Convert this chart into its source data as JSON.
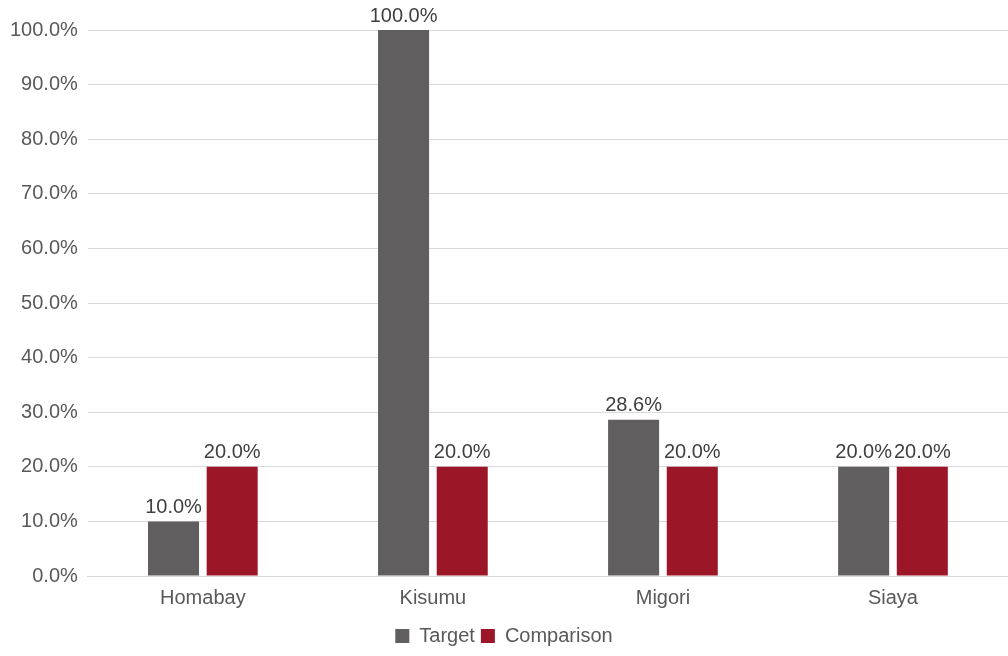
{
  "chart_data": {
    "type": "bar",
    "categories": [
      "Homabay",
      "Kisumu",
      "Migori",
      "Siaya"
    ],
    "series": [
      {
        "name": "Target",
        "color": "#605e5e",
        "values": [
          10,
          100,
          28.6,
          20
        ],
        "value_labels": [
          "10.0%",
          "100.0%",
          "28.6%",
          "20.0%"
        ]
      },
      {
        "name": "Comparison",
        "color": "#9b1728",
        "values": [
          20,
          20,
          20,
          20
        ],
        "value_labels": [
          "20.0%",
          "20.0%",
          "20.0%",
          "20.0%"
        ]
      }
    ],
    "ylim": [
      0,
      100
    ],
    "yticks": [
      {
        "value": 0,
        "label": "0.0%"
      },
      {
        "value": 10,
        "label": "10.0%"
      },
      {
        "value": 20,
        "label": "20.0%"
      },
      {
        "value": 30,
        "label": "30.0%"
      },
      {
        "value": 40,
        "label": "40.0%"
      },
      {
        "value": 50,
        "label": "50.0%"
      },
      {
        "value": 60,
        "label": "60.0%"
      },
      {
        "value": 70,
        "label": "70.0%"
      },
      {
        "value": 80,
        "label": "80.0%"
      },
      {
        "value": 90,
        "label": "90.0%"
      },
      {
        "value": 100,
        "label": "100.0%"
      }
    ],
    "grid": "y",
    "legend": "bottom"
  }
}
